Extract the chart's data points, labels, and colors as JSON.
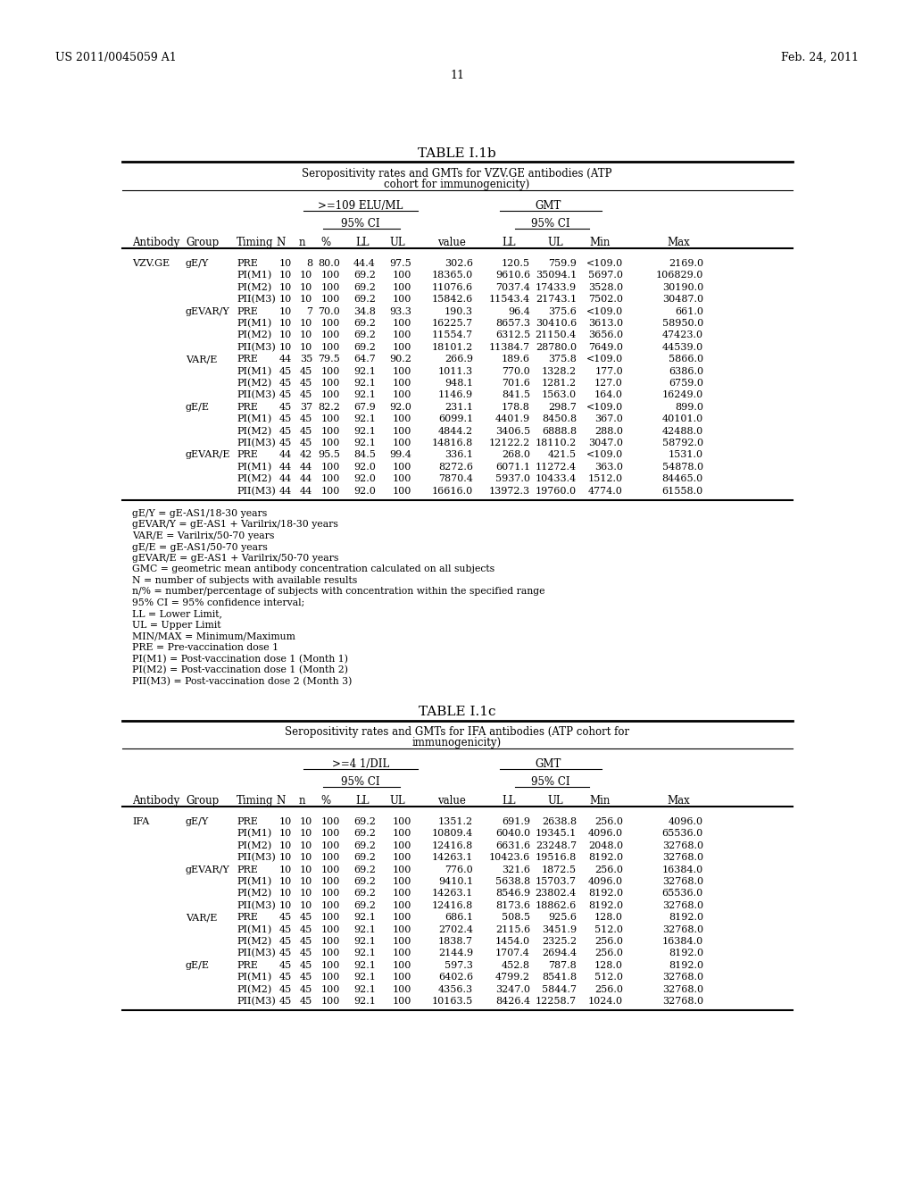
{
  "header_left": "US 2011/0045059 A1",
  "header_right": "Feb. 24, 2011",
  "page_number": "11",
  "table1_title": "TABLE I.1b",
  "table1_sub1": "Seropositivity rates and GMTs for VZV.GE antibodies (ATP",
  "table1_sub2": "cohort for immunogenicity)",
  "table1_col1_header": ">=109 ELU/ML",
  "table1_col2_header": "GMT",
  "table1_data": [
    [
      "VZV.GE",
      "gE/Y",
      "PRE",
      "10",
      "8",
      "80.0",
      "44.4",
      "97.5",
      "302.6",
      "120.5",
      "759.9",
      "<109.0",
      "2169.0"
    ],
    [
      "",
      "",
      "PI(M1)",
      "10",
      "10",
      "100",
      "69.2",
      "100",
      "18365.0",
      "9610.6",
      "35094.1",
      "5697.0",
      "106829.0"
    ],
    [
      "",
      "",
      "PI(M2)",
      "10",
      "10",
      "100",
      "69.2",
      "100",
      "11076.6",
      "7037.4",
      "17433.9",
      "3528.0",
      "30190.0"
    ],
    [
      "",
      "",
      "PII(M3)",
      "10",
      "10",
      "100",
      "69.2",
      "100",
      "15842.6",
      "11543.4",
      "21743.1",
      "7502.0",
      "30487.0"
    ],
    [
      "",
      "gEVAR/Y",
      "PRE",
      "10",
      "7",
      "70.0",
      "34.8",
      "93.3",
      "190.3",
      "96.4",
      "375.6",
      "<109.0",
      "661.0"
    ],
    [
      "",
      "",
      "PI(M1)",
      "10",
      "10",
      "100",
      "69.2",
      "100",
      "16225.7",
      "8657.3",
      "30410.6",
      "3613.0",
      "58950.0"
    ],
    [
      "",
      "",
      "PI(M2)",
      "10",
      "10",
      "100",
      "69.2",
      "100",
      "11554.7",
      "6312.5",
      "21150.4",
      "3656.0",
      "47423.0"
    ],
    [
      "",
      "",
      "PII(M3)",
      "10",
      "10",
      "100",
      "69.2",
      "100",
      "18101.2",
      "11384.7",
      "28780.0",
      "7649.0",
      "44539.0"
    ],
    [
      "",
      "VAR/E",
      "PRE",
      "44",
      "35",
      "79.5",
      "64.7",
      "90.2",
      "266.9",
      "189.6",
      "375.8",
      "<109.0",
      "5866.0"
    ],
    [
      "",
      "",
      "PI(M1)",
      "45",
      "45",
      "100",
      "92.1",
      "100",
      "1011.3",
      "770.0",
      "1328.2",
      "177.0",
      "6386.0"
    ],
    [
      "",
      "",
      "PI(M2)",
      "45",
      "45",
      "100",
      "92.1",
      "100",
      "948.1",
      "701.6",
      "1281.2",
      "127.0",
      "6759.0"
    ],
    [
      "",
      "",
      "PII(M3)",
      "45",
      "45",
      "100",
      "92.1",
      "100",
      "1146.9",
      "841.5",
      "1563.0",
      "164.0",
      "16249.0"
    ],
    [
      "",
      "gE/E",
      "PRE",
      "45",
      "37",
      "82.2",
      "67.9",
      "92.0",
      "231.1",
      "178.8",
      "298.7",
      "<109.0",
      "899.0"
    ],
    [
      "",
      "",
      "PI(M1)",
      "45",
      "45",
      "100",
      "92.1",
      "100",
      "6099.1",
      "4401.9",
      "8450.8",
      "367.0",
      "40101.0"
    ],
    [
      "",
      "",
      "PI(M2)",
      "45",
      "45",
      "100",
      "92.1",
      "100",
      "4844.2",
      "3406.5",
      "6888.8",
      "288.0",
      "42488.0"
    ],
    [
      "",
      "",
      "PII(M3)",
      "45",
      "45",
      "100",
      "92.1",
      "100",
      "14816.8",
      "12122.2",
      "18110.2",
      "3047.0",
      "58792.0"
    ],
    [
      "",
      "gEVAR/E",
      "PRE",
      "44",
      "42",
      "95.5",
      "84.5",
      "99.4",
      "336.1",
      "268.0",
      "421.5",
      "<109.0",
      "1531.0"
    ],
    [
      "",
      "",
      "PI(M1)",
      "44",
      "44",
      "100",
      "92.0",
      "100",
      "8272.6",
      "6071.1",
      "11272.4",
      "363.0",
      "54878.0"
    ],
    [
      "",
      "",
      "PI(M2)",
      "44",
      "44",
      "100",
      "92.0",
      "100",
      "7870.4",
      "5937.0",
      "10433.4",
      "1512.0",
      "84465.0"
    ],
    [
      "",
      "",
      "PII(M3)",
      "44",
      "44",
      "100",
      "92.0",
      "100",
      "16616.0",
      "13972.3",
      "19760.0",
      "4774.0",
      "61558.0"
    ]
  ],
  "footnotes1": [
    "gE/Y = gE-AS1/18-30 years",
    "gEVAR/Y = gE-AS1 + Varilrix/18-30 years",
    "VAR/E = Varilrix/50-70 years",
    "gE/E = gE-AS1/50-70 years",
    "gEVAR/E = gE-AS1 + Varilrix/50-70 years",
    "GMC = geometric mean antibody concentration calculated on all subjects",
    "N = number of subjects with available results",
    "n/% = number/percentage of subjects with concentration within the specified range",
    "95% CI = 95% confidence interval;",
    "LL = Lower Limit,",
    "UL = Upper Limit",
    "MIN/MAX = Minimum/Maximum",
    "PRE = Pre-vaccination dose 1",
    "PI(M1) = Post-vaccination dose 1 (Month 1)",
    "PI(M2) = Post-vaccination dose 1 (Month 2)",
    "PII(M3) = Post-vaccination dose 2 (Month 3)"
  ],
  "table2_title": "TABLE I.1c",
  "table2_sub1": "Seropositivity rates and GMTs for IFA antibodies (ATP cohort for",
  "table2_sub2": "immunogenicity)",
  "table2_col1_header": ">=4 1/DIL",
  "table2_col2_header": "GMT",
  "table2_data": [
    [
      "IFA",
      "gE/Y",
      "PRE",
      "10",
      "10",
      "100",
      "69.2",
      "100",
      "1351.2",
      "691.9",
      "2638.8",
      "256.0",
      "4096.0"
    ],
    [
      "",
      "",
      "PI(M1)",
      "10",
      "10",
      "100",
      "69.2",
      "100",
      "10809.4",
      "6040.0",
      "19345.1",
      "4096.0",
      "65536.0"
    ],
    [
      "",
      "",
      "PI(M2)",
      "10",
      "10",
      "100",
      "69.2",
      "100",
      "12416.8",
      "6631.6",
      "23248.7",
      "2048.0",
      "32768.0"
    ],
    [
      "",
      "",
      "PII(M3)",
      "10",
      "10",
      "100",
      "69.2",
      "100",
      "14263.1",
      "10423.6",
      "19516.8",
      "8192.0",
      "32768.0"
    ],
    [
      "",
      "gEVAR/Y",
      "PRE",
      "10",
      "10",
      "100",
      "69.2",
      "100",
      "776.0",
      "321.6",
      "1872.5",
      "256.0",
      "16384.0"
    ],
    [
      "",
      "",
      "PI(M1)",
      "10",
      "10",
      "100",
      "69.2",
      "100",
      "9410.1",
      "5638.8",
      "15703.7",
      "4096.0",
      "32768.0"
    ],
    [
      "",
      "",
      "PI(M2)",
      "10",
      "10",
      "100",
      "69.2",
      "100",
      "14263.1",
      "8546.9",
      "23802.4",
      "8192.0",
      "65536.0"
    ],
    [
      "",
      "",
      "PII(M3)",
      "10",
      "10",
      "100",
      "69.2",
      "100",
      "12416.8",
      "8173.6",
      "18862.6",
      "8192.0",
      "32768.0"
    ],
    [
      "",
      "VAR/E",
      "PRE",
      "45",
      "45",
      "100",
      "92.1",
      "100",
      "686.1",
      "508.5",
      "925.6",
      "128.0",
      "8192.0"
    ],
    [
      "",
      "",
      "PI(M1)",
      "45",
      "45",
      "100",
      "92.1",
      "100",
      "2702.4",
      "2115.6",
      "3451.9",
      "512.0",
      "32768.0"
    ],
    [
      "",
      "",
      "PI(M2)",
      "45",
      "45",
      "100",
      "92.1",
      "100",
      "1838.7",
      "1454.0",
      "2325.2",
      "256.0",
      "16384.0"
    ],
    [
      "",
      "",
      "PII(M3)",
      "45",
      "45",
      "100",
      "92.1",
      "100",
      "2144.9",
      "1707.4",
      "2694.4",
      "256.0",
      "8192.0"
    ],
    [
      "",
      "gE/E",
      "PRE",
      "45",
      "45",
      "100",
      "92.1",
      "100",
      "597.3",
      "452.8",
      "787.8",
      "128.0",
      "8192.0"
    ],
    [
      "",
      "",
      "PI(M1)",
      "45",
      "45",
      "100",
      "92.1",
      "100",
      "6402.6",
      "4799.2",
      "8541.8",
      "512.0",
      "32768.0"
    ],
    [
      "",
      "",
      "PI(M2)",
      "45",
      "45",
      "100",
      "92.1",
      "100",
      "4356.3",
      "3247.0",
      "5844.7",
      "256.0",
      "32768.0"
    ],
    [
      "",
      "",
      "PII(M3)",
      "45",
      "45",
      "100",
      "92.1",
      "100",
      "10163.5",
      "8426.4",
      "12258.7",
      "1024.0",
      "32768.0"
    ]
  ]
}
